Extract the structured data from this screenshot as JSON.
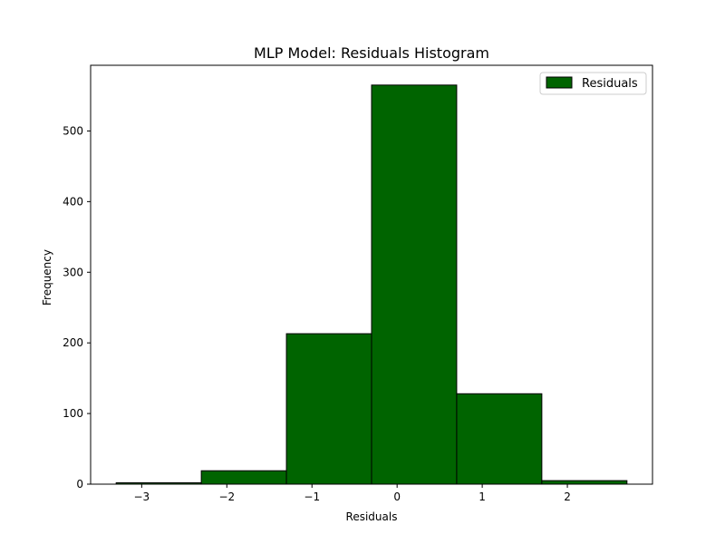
{
  "chart_data": {
    "type": "bar",
    "title": "MLP Model: Residuals Histogram",
    "xlabel": "Residuals",
    "ylabel": "Frequency",
    "xlim": [
      -3.6,
      3.0
    ],
    "ylim": [
      0,
      593
    ],
    "bins": [
      {
        "x0": -3.3,
        "x1": -2.3,
        "value": 2
      },
      {
        "x0": -2.3,
        "x1": -1.3,
        "value": 19
      },
      {
        "x0": -1.3,
        "x1": -0.3,
        "value": 213
      },
      {
        "x0": -0.3,
        "x1": 0.7,
        "value": 565
      },
      {
        "x0": 0.7,
        "x1": 1.7,
        "value": 128
      },
      {
        "x0": 1.7,
        "x1": 2.7,
        "value": 5
      }
    ],
    "x_ticks": [
      {
        "value": -3,
        "label": "−3"
      },
      {
        "value": -2,
        "label": "−2"
      },
      {
        "value": -1,
        "label": "−1"
      },
      {
        "value": 0,
        "label": "0"
      },
      {
        "value": 1,
        "label": "1"
      },
      {
        "value": 2,
        "label": "2"
      }
    ],
    "y_ticks": [
      {
        "value": 0,
        "label": "0"
      },
      {
        "value": 100,
        "label": "100"
      },
      {
        "value": 200,
        "label": "200"
      },
      {
        "value": 300,
        "label": "300"
      },
      {
        "value": 400,
        "label": "400"
      },
      {
        "value": 500,
        "label": "500"
      }
    ],
    "grid": false,
    "legend": {
      "position": "top-right",
      "label": "Residuals"
    },
    "bar_color": "#006400",
    "edge_color": "#000000"
  }
}
